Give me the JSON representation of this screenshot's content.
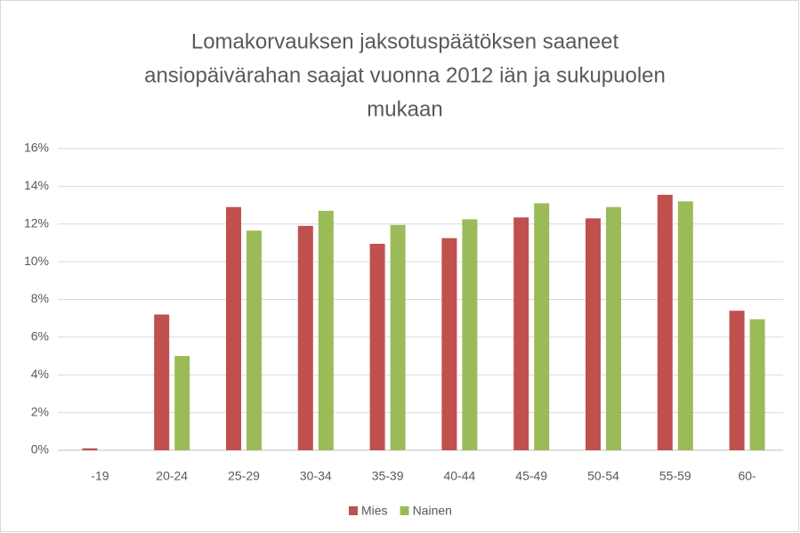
{
  "chart_data": {
    "type": "bar",
    "title": [
      "Lomakorvauksen jaksotuspäätöksen saaneet",
      "ansiopäivärahan saajat vuonna 2012 iän ja sukupuolen",
      "mukaan"
    ],
    "categories": [
      "-19",
      "20-24",
      "25-29",
      "30-34",
      "35-39",
      "40-44",
      "45-49",
      "50-54",
      "55-59",
      "60-"
    ],
    "series": [
      {
        "name": "Mies",
        "color": "#c0504d",
        "values": [
          0.1,
          7.2,
          12.9,
          11.9,
          10.95,
          11.25,
          12.35,
          12.3,
          13.55,
          7.4
        ]
      },
      {
        "name": "Nainen",
        "color": "#9bbb59",
        "values": [
          0,
          5.0,
          11.65,
          12.7,
          11.95,
          12.25,
          13.1,
          12.9,
          13.2,
          6.95
        ]
      }
    ],
    "ylim": [
      0,
      16
    ],
    "yticks": [
      {
        "value": 0,
        "label": "0%"
      },
      {
        "value": 2,
        "label": "2%"
      },
      {
        "value": 4,
        "label": "4%"
      },
      {
        "value": 6,
        "label": "6%"
      },
      {
        "value": 8,
        "label": "8%"
      },
      {
        "value": 10,
        "label": "10%"
      },
      {
        "value": 12,
        "label": "12%"
      },
      {
        "value": 14,
        "label": "14%"
      },
      {
        "value": 16,
        "label": "16%"
      }
    ],
    "grid": true,
    "legend": "bottom"
  }
}
